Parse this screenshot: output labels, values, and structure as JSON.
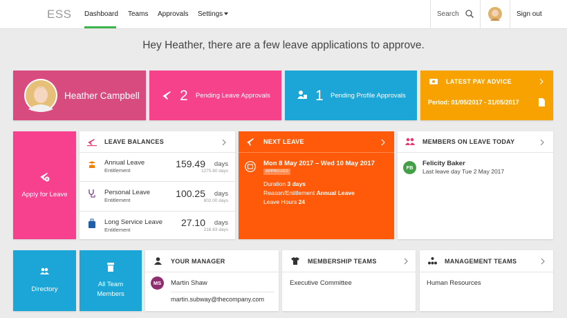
{
  "nav": {
    "logo": "ESS",
    "links": [
      "Dashboard",
      "Teams",
      "Approvals",
      "Settings"
    ],
    "search": "Search",
    "sign_out": "Sign out"
  },
  "greeting": "Hey Heather, there are a few leave applications to approve.",
  "profile": {
    "name": "Heather Campbell"
  },
  "pending_leave": {
    "count": "2",
    "label": "Pending Leave Approvals"
  },
  "pending_profile": {
    "count": "1",
    "label": "Pending Profile Approvals"
  },
  "pay_advice": {
    "title": "LATEST PAY ADVICE",
    "period": "Period: 01/05/2017 - 31/05/2017"
  },
  "apply_leave": "Apply for Leave",
  "leave_balances": {
    "title": "LEAVE BALANCES",
    "items": [
      {
        "type": "Annual Leave",
        "sub": "Entitlement",
        "value": "159.49",
        "unit": "days",
        "entitlement": "1275.80 days"
      },
      {
        "type": "Personal Leave",
        "sub": "Entitlement",
        "value": "100.25",
        "unit": "days",
        "entitlement": "802.00 days"
      },
      {
        "type": "Long Service Leave",
        "sub": "Entitlement",
        "value": "27.10",
        "unit": "days",
        "entitlement": "216.83 days"
      }
    ]
  },
  "next_leave": {
    "title": "NEXT LEAVE",
    "dates": "Mon 8 May 2017 – Wed 10 May 2017",
    "status": "APPROVED",
    "duration_label": "Duration",
    "duration": "3 days",
    "reason_label": "Reason/Entitlement",
    "reason": "Annual Leave",
    "hours_label": "Leave Hours",
    "hours": "24"
  },
  "members_on_leave": {
    "title": "MEMBERS ON LEAVE TODAY",
    "members": [
      {
        "initials": "FB",
        "name": "Felicity Baker",
        "detail": "Last leave day Tue 2 May 2017"
      }
    ]
  },
  "directory": "Directory",
  "all_team_members": "All Team Members",
  "manager": {
    "title": "YOUR MANAGER",
    "initials": "MS",
    "name": "Martin Shaw",
    "email": "martin.subway@thecompany.com"
  },
  "membership_teams": {
    "title": "MEMBERSHIP TEAMS",
    "teams": [
      "Executive Committee"
    ]
  },
  "management_teams": {
    "title": "MANAGEMENT TEAMS",
    "teams": [
      "Human Resources"
    ]
  }
}
